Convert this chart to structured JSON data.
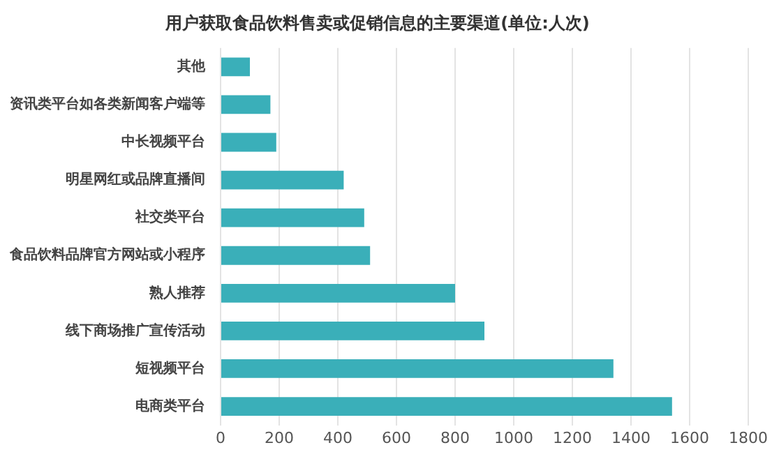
{
  "chart_data": {
    "type": "bar",
    "orientation": "horizontal",
    "title": "用户获取食品饮料售卖或促销信息的主要渠道(单位:人次)",
    "categories": [
      "其他",
      "资讯类平台如各类新闻客户端等",
      "中长视频平台",
      "明星网红或品牌直播间",
      "社交类平台",
      "食品饮料品牌官方网站或小程序",
      "熟人推荐",
      "线下商场推广宣传活动",
      "短视频平台",
      "电商类平台"
    ],
    "values": [
      100,
      170,
      190,
      420,
      490,
      510,
      800,
      900,
      1340,
      1540
    ],
    "color": "#3aafb9",
    "xlim": [
      0,
      1800
    ],
    "xticks": [
      0,
      200,
      400,
      600,
      800,
      1000,
      1200,
      1400,
      1600,
      1800
    ],
    "grid": "x"
  }
}
